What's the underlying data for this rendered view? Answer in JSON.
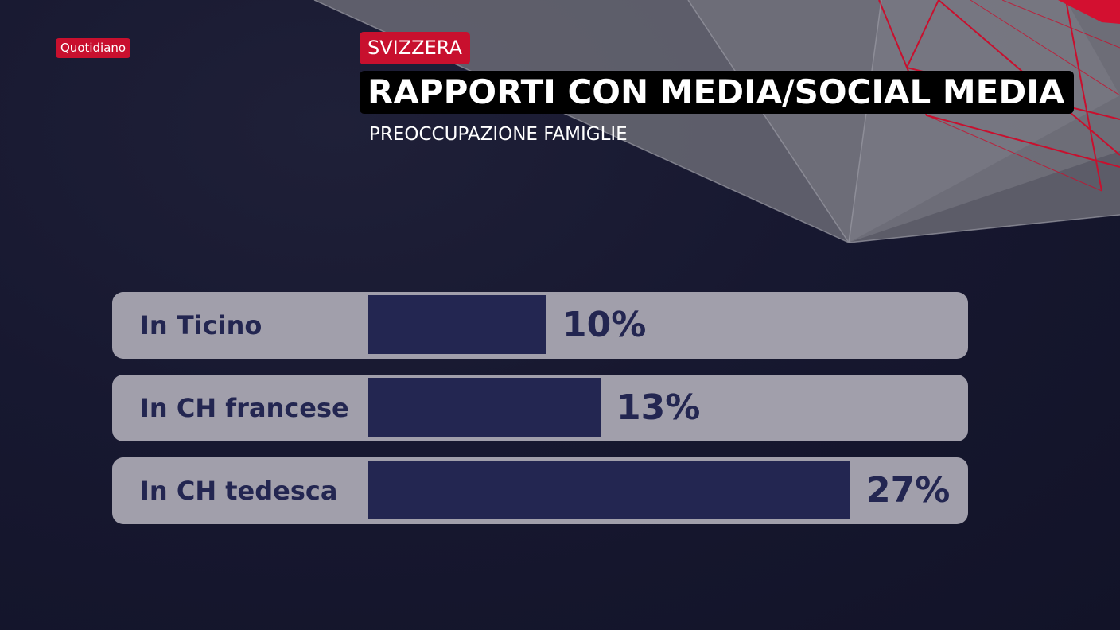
{
  "program_badge": "Quotidiano",
  "section_tag": "SVIZZERA",
  "colors": {
    "brand_red": "#c8102e",
    "bar_fill": "#232651",
    "row_background": "#a19fab"
  },
  "chart_data": {
    "type": "bar",
    "orientation": "horizontal",
    "title": "RAPPORTI CON MEDIA/SOCIAL MEDIA",
    "subtitle": "PREOCCUPAZIONE FAMIGLIE",
    "categories": [
      "In Ticino",
      "In CH francese",
      "In CH tedesca"
    ],
    "values": [
      10,
      13,
      27
    ],
    "value_labels": [
      "10%",
      "13%",
      "27%"
    ],
    "unit": "%",
    "xlim": [
      0,
      27
    ],
    "grid": false,
    "legend": "none"
  }
}
